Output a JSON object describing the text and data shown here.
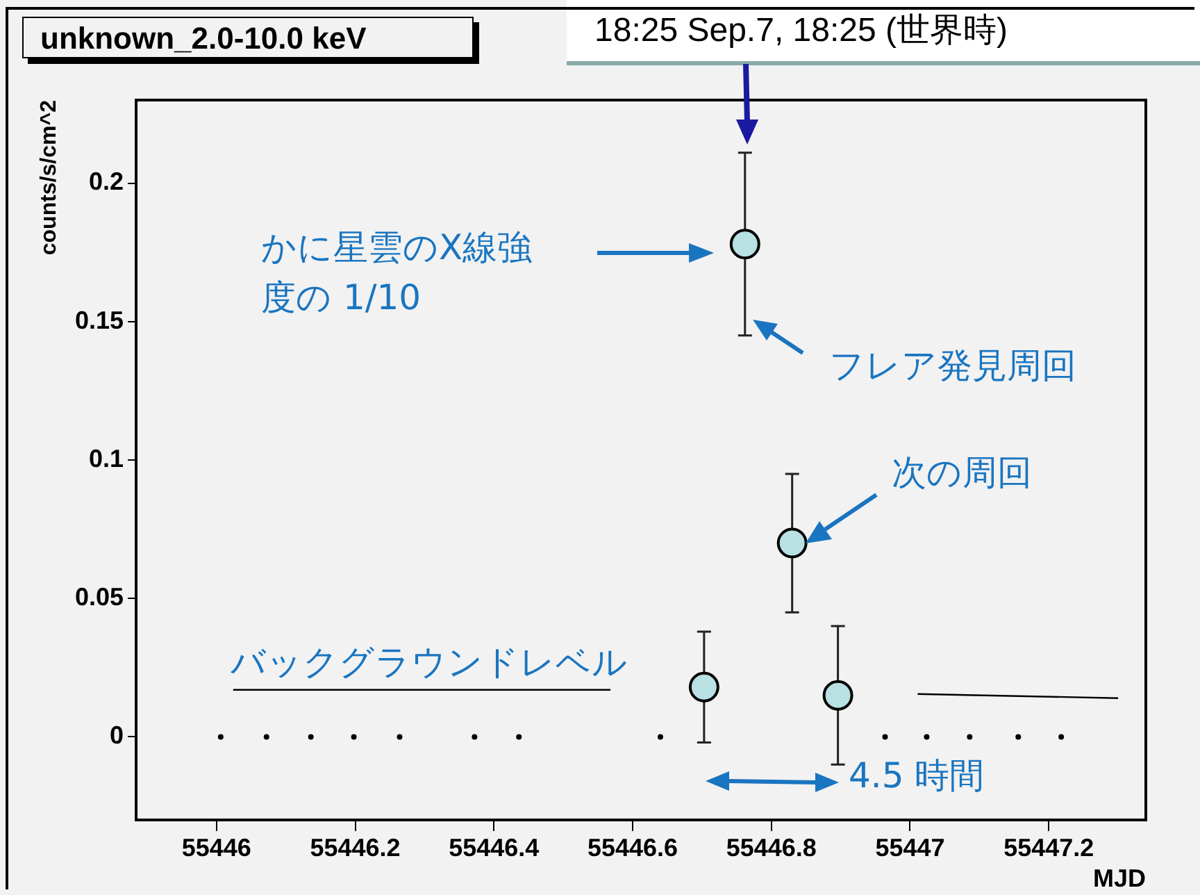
{
  "chart_data": {
    "type": "scatter",
    "title": "unknown_2.0-10.0 keV",
    "xlabel": "MJD",
    "ylabel": "counts/s/cm^2",
    "xlim": [
      55445.884,
      55447.34
    ],
    "xticks": [
      55446,
      55446.2,
      55446.4,
      55446.6,
      55446.8,
      55447,
      55447.2
    ],
    "ylim": [
      -0.03,
      0.23
    ],
    "yticks": [
      0,
      0.05,
      0.1,
      0.15,
      0.2
    ],
    "grid": false,
    "legend": false,
    "series": [
      {
        "color": "#b9e0e3",
        "marker": "circle",
        "x": [
          55446.703,
          55446.762,
          55446.83,
          55446.896
        ],
        "values": [
          0.018,
          0.178,
          0.07,
          0.015
        ],
        "errors": [
          0.02,
          0.033,
          0.025,
          0.025
        ]
      },
      {
        "color": "#000000",
        "marker": "circle",
        "x": [
          55446.006,
          55446.072,
          55446.136,
          55446.198,
          55446.264,
          55446.372,
          55446.436,
          55446.64,
          55446.964,
          55447.024,
          55447.086,
          55447.156,
          55447.218
        ],
        "values": [
          0,
          0,
          0,
          0,
          0,
          0,
          0,
          0,
          0,
          0,
          0,
          0,
          0
        ]
      },
      {
        "type": "line",
        "color": "#000000",
        "marker": "none",
        "x": [
          55446.024,
          55446.568
        ],
        "values": [
          0.017,
          0.017
        ]
      },
      {
        "type": "line",
        "color": "#000000",
        "marker": "none",
        "x": [
          55447.011,
          55447.3
        ],
        "values": [
          0.0155,
          0.014
        ]
      }
    ],
    "annotations": [
      "18:25 Sep.7, 18:25 (世界時)",
      "かに星雲のX線強度の 1/10",
      "フレア発見周回",
      "次の周回",
      "バックグラウンドレベル",
      "4.5 時間"
    ]
  }
}
